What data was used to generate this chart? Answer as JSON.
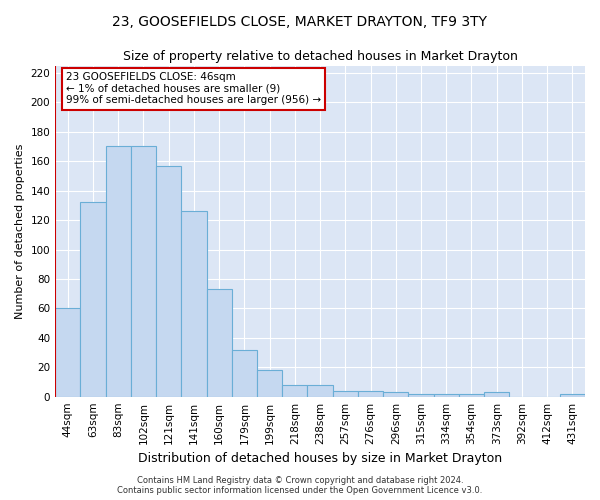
{
  "title": "23, GOOSEFIELDS CLOSE, MARKET DRAYTON, TF9 3TY",
  "subtitle": "Size of property relative to detached houses in Market Drayton",
  "xlabel": "Distribution of detached houses by size in Market Drayton",
  "ylabel": "Number of detached properties",
  "categories": [
    "44sqm",
    "63sqm",
    "83sqm",
    "102sqm",
    "121sqm",
    "141sqm",
    "160sqm",
    "179sqm",
    "199sqm",
    "218sqm",
    "238sqm",
    "257sqm",
    "276sqm",
    "296sqm",
    "315sqm",
    "334sqm",
    "354sqm",
    "373sqm",
    "392sqm",
    "412sqm",
    "431sqm"
  ],
  "values": [
    60,
    132,
    170,
    170,
    157,
    126,
    73,
    32,
    18,
    8,
    8,
    4,
    4,
    3,
    2,
    2,
    2,
    3,
    0,
    0,
    2
  ],
  "bar_color": "#c5d8f0",
  "bar_edge_color": "#6aaed6",
  "highlight_color": "#cc0000",
  "annotation_text": "23 GOOSEFIELDS CLOSE: 46sqm\n← 1% of detached houses are smaller (9)\n99% of semi-detached houses are larger (956) →",
  "annotation_box_color": "#ffffff",
  "annotation_box_edge": "#cc0000",
  "ylim": [
    0,
    225
  ],
  "yticks": [
    0,
    20,
    40,
    60,
    80,
    100,
    120,
    140,
    160,
    180,
    200,
    220
  ],
  "plot_bg_color": "#dce6f5",
  "fig_bg_color": "#ffffff",
  "footer_line1": "Contains HM Land Registry data © Crown copyright and database right 2024.",
  "footer_line2": "Contains public sector information licensed under the Open Government Licence v3.0.",
  "title_fontsize": 10,
  "subtitle_fontsize": 9,
  "annot_fontsize": 7.5,
  "ylabel_fontsize": 8,
  "xlabel_fontsize": 9,
  "tick_fontsize": 7.5,
  "footer_fontsize": 6,
  "bar_width": 1.0
}
